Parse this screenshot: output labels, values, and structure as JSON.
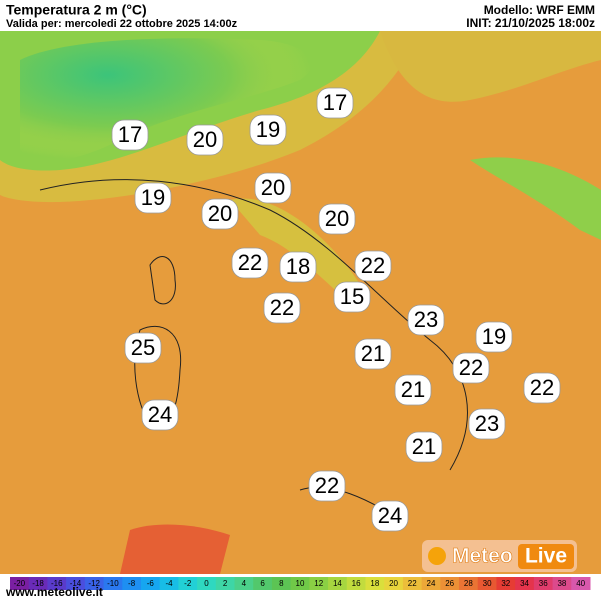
{
  "header": {
    "title": "Temperatura 2 m (°C)",
    "valid": "Valida per: mercoledi 22 ottobre 2025 14:00z",
    "model": "Modello: WRF EMM",
    "init": "INIT: 21/10/2025 18:00z"
  },
  "labels": [
    17,
    20,
    19,
    17,
    19,
    20,
    20,
    20,
    22,
    18,
    22,
    15,
    22,
    23,
    19,
    25,
    21,
    22,
    22,
    21,
    24,
    23,
    21,
    22,
    24
  ],
  "colorbar": {
    "ticks": [
      -20,
      -18,
      -16,
      -14,
      -12,
      -10,
      -8,
      -6,
      -4,
      -2,
      0,
      2,
      4,
      6,
      8,
      10,
      12,
      14,
      16,
      18,
      20,
      22,
      24,
      26,
      28,
      30,
      32,
      34,
      36,
      38,
      40
    ],
    "colors": [
      "#7a1fa2",
      "#6a2bb8",
      "#5a3bcc",
      "#4a4ede",
      "#3a62e8",
      "#2a78ef",
      "#1e8ff2",
      "#16a6f0",
      "#18bde6",
      "#22d0d6",
      "#2fd8c0",
      "#3ed6a6",
      "#4bd08a",
      "#52c86c",
      "#5cc454",
      "#70c948",
      "#8ad044",
      "#a6d640",
      "#c2dc3e",
      "#dadf3c",
      "#e8d43c",
      "#ecbe3a",
      "#eca838",
      "#ec9036",
      "#ea7434",
      "#e85832",
      "#e63c34",
      "#e4344c",
      "#e03c6c",
      "#dc4a8c",
      "#d858ac"
    ]
  },
  "footer": {
    "site": "www.meteolive.it",
    "logo_a": "Meteo",
    "logo_b": "Live"
  }
}
